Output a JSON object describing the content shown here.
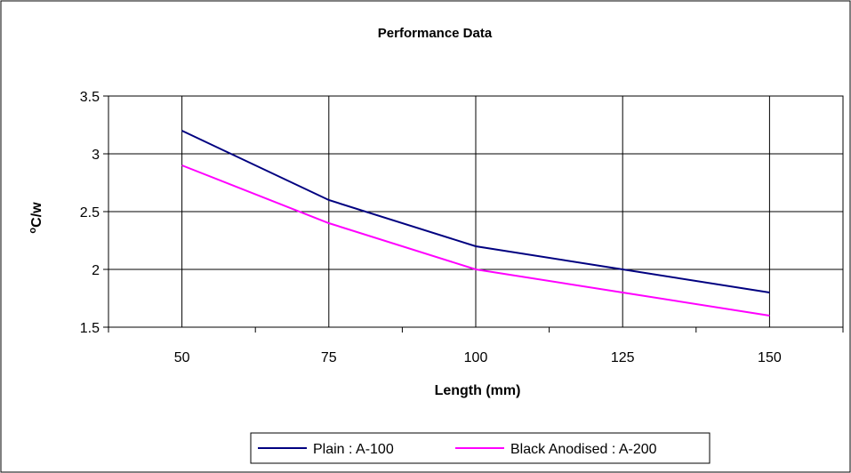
{
  "chart_data": {
    "type": "line",
    "title": "Performance Data",
    "xlabel": "Length (mm)",
    "ylabel_sup": "o",
    "ylabel_main": "C/w",
    "categories": [
      "50",
      "75",
      "100",
      "125",
      "150"
    ],
    "ylim": [
      1.5,
      3.5
    ],
    "yticks": [
      "1.5",
      "2",
      "2.5",
      "3",
      "3.5"
    ],
    "grid": true,
    "legend_position": "bottom",
    "series": [
      {
        "name": "Plain : A-100",
        "color": "#000080",
        "values": [
          3.2,
          2.6,
          2.2,
          2.0,
          1.8
        ]
      },
      {
        "name": "Black Anodised : A-200",
        "color": "#FF00FF",
        "values": [
          2.9,
          2.4,
          2.0,
          1.8,
          1.6
        ]
      }
    ]
  }
}
